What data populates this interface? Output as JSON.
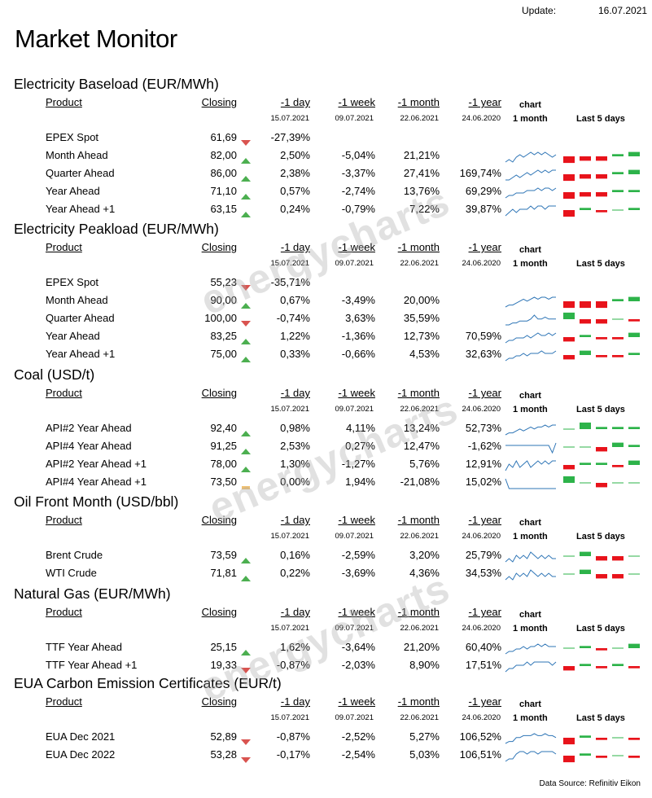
{
  "update_label": "Update:",
  "update_date": "16.07.2021",
  "title": "Market Monitor",
  "watermark": "energycharts",
  "data_source": "Data Source: Refinitiv Eikon",
  "headers": {
    "product": "Product",
    "closing": "Closing",
    "d1": "-1 day",
    "w1": "-1 week",
    "m1": "-1 month",
    "y1": "-1 year",
    "chart": "chart",
    "chart_sub": "1 month",
    "last5": "Last 5  days"
  },
  "dates": {
    "d1": "15.07.2021",
    "w1": "09.07.2021",
    "m1": "22.06.2021",
    "y1": "24.06.2020"
  },
  "colors": {
    "up": "#2db34a",
    "down": "#e8131b",
    "flat": "#f0c070",
    "spark": "#2e75b6",
    "up_tri": "#4caf50",
    "down_tri": "#d9534f"
  },
  "sections": [
    {
      "title": "Electricity Baseload (EUR/MWh)",
      "rows": [
        {
          "product": "EPEX Spot",
          "closing": "61,69",
          "dir": "down",
          "d1": "-27,39%",
          "w1": "",
          "m1": "",
          "y1": "",
          "spark": null,
          "last5": null
        },
        {
          "product": "Month Ahead",
          "closing": "82,00",
          "dir": "up",
          "d1": "2,50%",
          "w1": "-5,04%",
          "m1": "21,21%",
          "y1": "",
          "spark": [
            3,
            4,
            3,
            5,
            6,
            5,
            6,
            7,
            6,
            7,
            6,
            7,
            6,
            5,
            6
          ],
          "last5": [
            -3,
            -2,
            -2,
            1,
            2
          ]
        },
        {
          "product": "Quarter Ahead",
          "closing": "86,00",
          "dir": "up",
          "d1": "2,38%",
          "w1": "-3,37%",
          "m1": "27,41%",
          "y1": "169,74%",
          "spark": [
            3,
            3,
            4,
            5,
            4,
            5,
            6,
            5,
            6,
            7,
            6,
            7,
            6,
            7,
            7
          ],
          "last5": [
            -3,
            -2,
            -2,
            1,
            2
          ]
        },
        {
          "product": "Year Ahead",
          "closing": "71,10",
          "dir": "up",
          "d1": "0,57%",
          "w1": "-2,74%",
          "m1": "13,76%",
          "y1": "69,29%",
          "spark": [
            3,
            4,
            4,
            5,
            5,
            5,
            6,
            6,
            6,
            7,
            6,
            7,
            7,
            6,
            7
          ],
          "last5": [
            -3,
            -2,
            -2,
            1,
            1
          ]
        },
        {
          "product": "Year  Ahead +1",
          "closing": "63,15",
          "dir": "up",
          "d1": "0,24%",
          "w1": "-0,79%",
          "m1": "7,22%",
          "y1": "39,87%",
          "spark": [
            3,
            4,
            5,
            4,
            5,
            5,
            5,
            6,
            5,
            6,
            6,
            5,
            6,
            6,
            6
          ],
          "last5": [
            -3,
            1,
            -1,
            0,
            1
          ]
        }
      ]
    },
    {
      "title": "Electricity Peakload (EUR/MWh)",
      "rows": [
        {
          "product": "EPEX Spot",
          "closing": "55,23",
          "dir": "down",
          "d1": "-35,71%",
          "w1": "",
          "m1": "",
          "y1": "",
          "spark": null,
          "last5": null
        },
        {
          "product": "Month Ahead",
          "closing": "90,00",
          "dir": "up",
          "d1": "0,67%",
          "w1": "-3,49%",
          "m1": "20,00%",
          "y1": "",
          "spark": [
            2,
            3,
            3,
            4,
            5,
            6,
            5,
            6,
            7,
            6,
            7,
            7,
            6,
            7,
            7
          ],
          "last5": [
            -3,
            -3,
            -3,
            1,
            2
          ]
        },
        {
          "product": "Quarter Ahead",
          "closing": "100,00",
          "dir": "down",
          "d1": "-0,74%",
          "w1": "3,63%",
          "m1": "35,59%",
          "y1": "",
          "spark": [
            3,
            3,
            4,
            4,
            5,
            5,
            5,
            6,
            8,
            6,
            6,
            7,
            6,
            6,
            6
          ],
          "last5": [
            3,
            -2,
            -2,
            0,
            -1
          ]
        },
        {
          "product": "Year Ahead",
          "closing": "83,25",
          "dir": "up",
          "d1": "1,22%",
          "w1": "-1,36%",
          "m1": "12,73%",
          "y1": "70,59%",
          "spark": [
            3,
            4,
            4,
            5,
            5,
            5,
            6,
            5,
            6,
            7,
            6,
            6,
            7,
            6,
            7
          ],
          "last5": [
            -2,
            1,
            -1,
            -1,
            2
          ]
        },
        {
          "product": "Year  Ahead +1",
          "closing": "75,00",
          "dir": "up",
          "d1": "0,33%",
          "w1": "-0,66%",
          "m1": "4,53%",
          "y1": "32,63%",
          "spark": [
            3,
            4,
            4,
            5,
            5,
            6,
            5,
            6,
            6,
            6,
            7,
            6,
            6,
            6,
            7
          ],
          "last5": [
            -2,
            2,
            -1,
            -1,
            1
          ]
        }
      ]
    },
    {
      "title": "Coal (USD/t)",
      "rows": [
        {
          "product": "API#2 Year Ahead",
          "closing": "92,40",
          "dir": "up",
          "d1": "0,98%",
          "w1": "4,11%",
          "m1": "13,24%",
          "y1": "52,73%",
          "spark": [
            3,
            4,
            4,
            5,
            6,
            5,
            6,
            7,
            6,
            7,
            7,
            8,
            7,
            8,
            8
          ],
          "last5": [
            0,
            3,
            1,
            1,
            1
          ]
        },
        {
          "product": "API#4 Year Ahead",
          "closing": "91,25",
          "dir": "up",
          "d1": "2,53%",
          "w1": "0,27%",
          "m1": "12,47%",
          "y1": "-1,62%",
          "spark": [
            5,
            5,
            5,
            5,
            5,
            5,
            5,
            5,
            5,
            5,
            5,
            5,
            5,
            2,
            6
          ],
          "last5": [
            0,
            0,
            -2,
            2,
            1
          ]
        },
        {
          "product": "API#2 Year Ahead +1",
          "closing": "78,00",
          "dir": "up",
          "d1": "1,30%",
          "w1": "-1,27%",
          "m1": "5,76%",
          "y1": "12,91%",
          "spark": [
            3,
            5,
            4,
            6,
            4,
            5,
            6,
            4,
            5,
            6,
            5,
            6,
            5,
            6,
            6
          ],
          "last5": [
            -2,
            1,
            1,
            -1,
            2
          ]
        },
        {
          "product": "API#4 Year Ahead +1",
          "closing": "73,50",
          "dir": "flat",
          "d1": "0,00%",
          "w1": "1,94%",
          "m1": "-21,08%",
          "y1": "15,02%",
          "spark": [
            7,
            3,
            3,
            3,
            3,
            3,
            3,
            3,
            3,
            3,
            3,
            3,
            3,
            3,
            3
          ],
          "last5": [
            3,
            0,
            -2,
            0,
            0
          ]
        }
      ]
    },
    {
      "title": "Oil Front Month (USD/bbl)",
      "rows": [
        {
          "product": "Brent Crude",
          "closing": "73,59",
          "dir": "up",
          "d1": "0,16%",
          "w1": "-2,59%",
          "m1": "3,20%",
          "y1": "25,79%",
          "spark": [
            4,
            5,
            4,
            6,
            5,
            6,
            5,
            7,
            6,
            5,
            6,
            5,
            6,
            5,
            5
          ],
          "last5": [
            0,
            2,
            -2,
            -2,
            0
          ]
        },
        {
          "product": "WTI Crude",
          "closing": "71,81",
          "dir": "up",
          "d1": "0,22%",
          "w1": "-3,69%",
          "m1": "4,36%",
          "y1": "34,53%",
          "spark": [
            4,
            5,
            4,
            6,
            5,
            6,
            5,
            7,
            6,
            5,
            6,
            5,
            6,
            5,
            5
          ],
          "last5": [
            0,
            2,
            -2,
            -2,
            0
          ]
        }
      ]
    },
    {
      "title": "Natural Gas (EUR/MWh)",
      "rows": [
        {
          "product": "TTF Year Ahead",
          "closing": "25,15",
          "dir": "up",
          "d1": "1,62%",
          "w1": "-3,64%",
          "m1": "21,20%",
          "y1": "60,40%",
          "spark": [
            3,
            4,
            4,
            5,
            5,
            6,
            5,
            6,
            6,
            7,
            6,
            7,
            6,
            6,
            6
          ],
          "last5": [
            0,
            1,
            -1,
            0,
            2
          ]
        },
        {
          "product": "TTF Year Ahead +1",
          "closing": "19,33",
          "dir": "down",
          "d1": "-0,87%",
          "w1": "-2,03%",
          "m1": "8,90%",
          "y1": "17,51%",
          "spark": [
            3,
            4,
            4,
            5,
            5,
            5,
            6,
            5,
            6,
            6,
            6,
            6,
            6,
            5,
            6
          ],
          "last5": [
            -2,
            1,
            -1,
            1,
            -1
          ]
        }
      ]
    },
    {
      "title": "EUA Carbon Emission Certificates (EUR/t)",
      "rows": [
        {
          "product": "EUA Dec 2021",
          "closing": "52,89",
          "dir": "down",
          "d1": "-0,87%",
          "w1": "-2,52%",
          "m1": "5,27%",
          "y1": "106,52%",
          "spark": [
            2,
            3,
            3,
            5,
            5,
            6,
            6,
            6,
            7,
            6,
            6,
            7,
            6,
            6,
            5
          ],
          "last5": [
            -3,
            1,
            -1,
            0,
            -1
          ]
        },
        {
          "product": "EUA Dec 2022",
          "closing": "53,28",
          "dir": "down",
          "d1": "-0,17%",
          "w1": "-2,54%",
          "m1": "5,03%",
          "y1": "106,51%",
          "spark": [
            2,
            3,
            3,
            5,
            6,
            6,
            5,
            6,
            6,
            5,
            6,
            6,
            6,
            6,
            5
          ],
          "last5": [
            -3,
            1,
            -1,
            0,
            -1
          ]
        }
      ]
    }
  ]
}
